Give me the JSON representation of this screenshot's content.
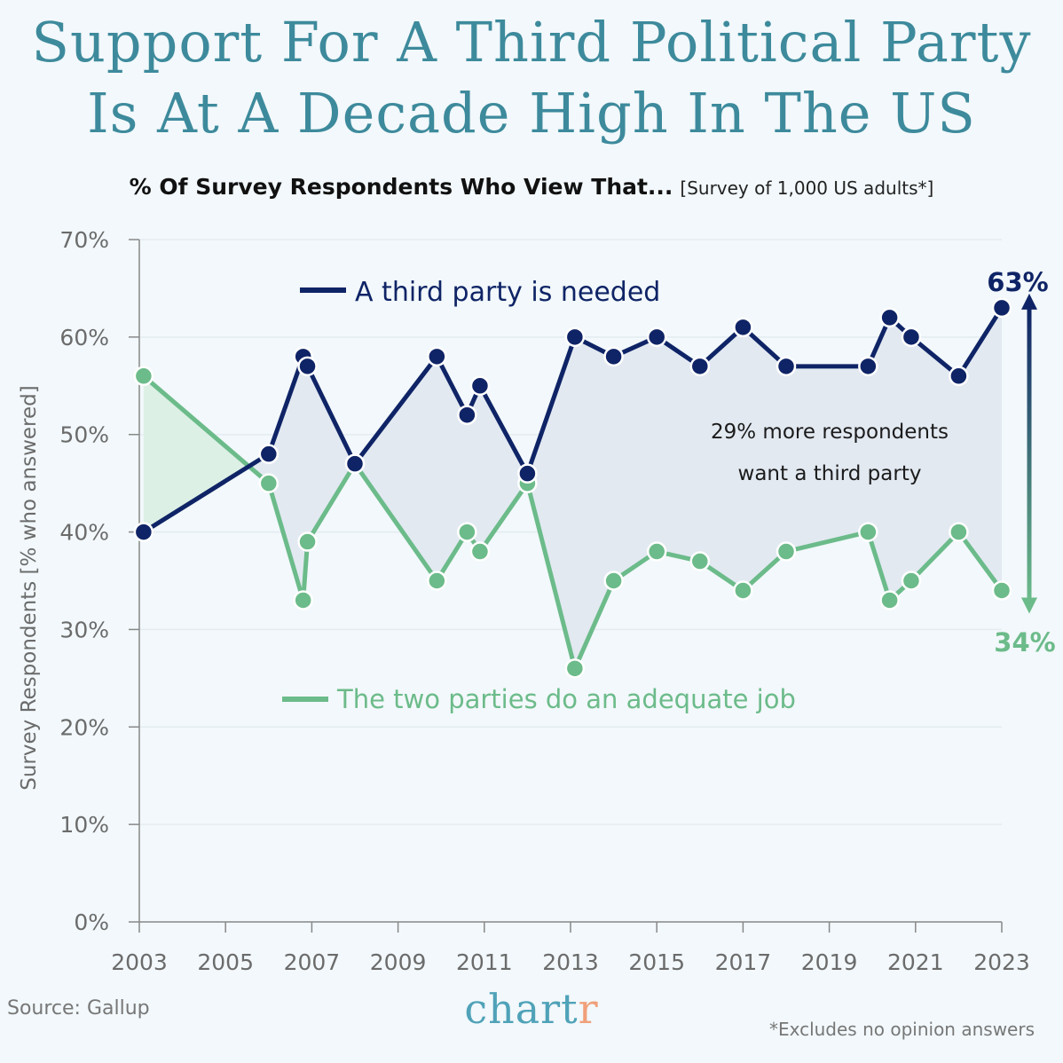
{
  "header": {
    "title_line1": "Support For A Third Political Party",
    "title_line2": "Is At A Decade High In The US",
    "subtitle_main": "% Of Survey Respondents Who View That...",
    "subtitle_note": "[Survey of 1,000 US adults*]"
  },
  "footer": {
    "source": "Source: Gallup",
    "brand_main": "chart",
    "brand_accent": "r",
    "footnote": "*Excludes no opinion answers"
  },
  "annotation": {
    "line1": "29% more respondents",
    "line2": "want a third party",
    "top_label": "63%",
    "bottom_label": "34%"
  },
  "colors": {
    "third_party": "#0f2466",
    "two_parties": "#6cbb8a",
    "fill_blue": "#e2e9f1",
    "fill_green": "#ddf0e5",
    "axis": "#888888",
    "grid": "#e4ecf1",
    "tick_text": "#6b6b6b"
  },
  "chart_data": {
    "type": "line",
    "title": "% Of Survey Respondents Who View That...",
    "ylabel": "Survey Respondents [% who answered]",
    "xlabel": "",
    "xlim": [
      2003,
      2023
    ],
    "ylim": [
      0,
      70
    ],
    "x_ticks": [
      2003,
      2005,
      2007,
      2009,
      2011,
      2013,
      2015,
      2017,
      2019,
      2021,
      2023
    ],
    "y_ticks": [
      0,
      10,
      20,
      30,
      40,
      50,
      60,
      70
    ],
    "y_tick_suffix": "%",
    "grid": true,
    "series": [
      {
        "name": "A third party is needed",
        "color": "#0f2466",
        "x": [
          2003.1,
          2006,
          2006.8,
          2006.9,
          2008,
          2009.9,
          2010.6,
          2010.9,
          2012,
          2013.1,
          2014,
          2015,
          2016,
          2017,
          2018,
          2019.9,
          2020.4,
          2020.9,
          2022,
          2023
        ],
        "values": [
          40,
          48,
          58,
          57,
          47,
          58,
          52,
          55,
          46,
          60,
          58,
          60,
          57,
          61,
          57,
          57,
          62,
          60,
          56,
          63
        ]
      },
      {
        "name": "The two parties do an adequate job",
        "color": "#6cbb8a",
        "x": [
          2003.1,
          2006,
          2006.8,
          2006.9,
          2008,
          2009.9,
          2010.6,
          2010.9,
          2012,
          2013.1,
          2014,
          2015,
          2016,
          2017,
          2018,
          2019.9,
          2020.4,
          2020.9,
          2022,
          2023
        ],
        "values": [
          56,
          45,
          33,
          39,
          47,
          35,
          40,
          38,
          45,
          26,
          35,
          38,
          37,
          34,
          38,
          40,
          33,
          35,
          40,
          34
        ]
      }
    ]
  }
}
